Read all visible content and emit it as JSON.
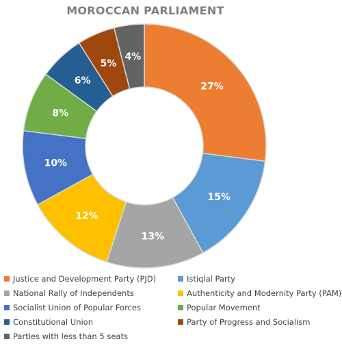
{
  "chart_data": {
    "type": "pie",
    "title": "MOROCCAN PARLIAMENT",
    "legend_position": "bottom",
    "categories": [
      "Justice and Development Party (PJD)",
      "Istiqlal Party",
      "National Rally of Independents",
      "Authenticity and Modernity Party (PAM)",
      "Socialist Union of Popular Forces",
      "Popular Movement",
      "Constitutional Union",
      "Party of Progress and Socialism",
      "Parties with less than 5 seats"
    ],
    "values": [
      27,
      15,
      13,
      12,
      10,
      8,
      6,
      5,
      4
    ],
    "labels": [
      "27%",
      "15%",
      "13%",
      "12%",
      "10%",
      "8%",
      "6%",
      "5%",
      "4%"
    ],
    "wedge_order": [
      0,
      1,
      2,
      3,
      4,
      5,
      6,
      7,
      8
    ],
    "colors": [
      "#ed7d31",
      "#5b9bd5",
      "#a5a5a5",
      "#ffc000",
      "#4472c4",
      "#70ad47",
      "#255e91",
      "#9e480e",
      "#636363"
    ]
  }
}
